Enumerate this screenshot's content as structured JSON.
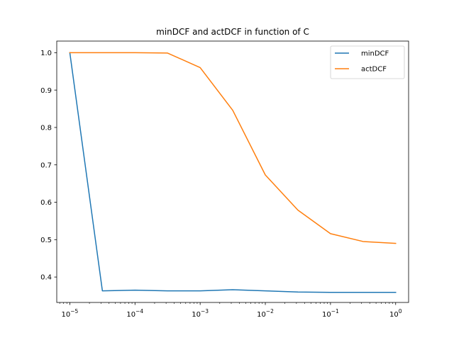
{
  "chart_data": {
    "type": "line",
    "title": "minDCF and actDCF in function of C",
    "xlabel": "",
    "ylabel": "",
    "xscale": "log",
    "xlim": [
      6.3e-06,
      1.58
    ],
    "ylim": [
      0.332,
      1.031
    ],
    "grid": false,
    "legend_position": "top-right",
    "x": [
      1e-05,
      3.16e-05,
      0.0001,
      0.000316,
      0.001,
      0.00316,
      0.01,
      0.0316,
      0.1,
      0.316,
      1
    ],
    "x_ticks": [
      {
        "value": 1e-05,
        "base": "10",
        "exp": "−5"
      },
      {
        "value": 0.0001,
        "base": "10",
        "exp": "−4"
      },
      {
        "value": 0.001,
        "base": "10",
        "exp": "−3"
      },
      {
        "value": 0.01,
        "base": "10",
        "exp": "−2"
      },
      {
        "value": 0.1,
        "base": "10",
        "exp": "−1"
      },
      {
        "value": 1,
        "base": "10",
        "exp": "0"
      }
    ],
    "y_ticks": [
      "0.4",
      "0.5",
      "0.6",
      "0.7",
      "0.8",
      "0.9",
      "1.0"
    ],
    "series": [
      {
        "name": "minDCF",
        "color": "#1f77b4",
        "values": [
          1.0,
          0.363,
          0.365,
          0.363,
          0.363,
          0.366,
          0.363,
          0.36,
          0.359,
          0.359,
          0.359
        ]
      },
      {
        "name": "actDCF",
        "color": "#ff7f0e",
        "values": [
          1.0,
          1.0,
          1.0,
          0.999,
          0.96,
          0.846,
          0.673,
          0.579,
          0.516,
          0.495,
          0.49
        ]
      }
    ]
  }
}
